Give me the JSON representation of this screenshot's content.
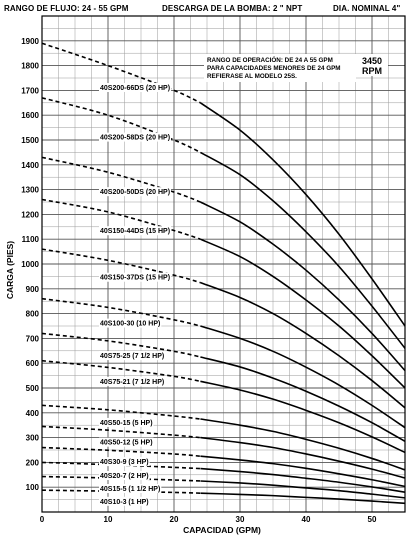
{
  "header": {
    "flow_range": "RANGO DE FLUJO: 24 - 55 GPM",
    "discharge": "DESCARGA DE LA BOMBA: 2 \" NPT",
    "diameter": "DIA. NOMINAL 4\""
  },
  "chart_data": {
    "type": "line",
    "xlabel": "CAPACIDAD (GPM)",
    "ylabel": "CARGA (PIES)",
    "xlim": [
      0,
      55
    ],
    "ylim": [
      0,
      2000
    ],
    "x_ticks": [
      "0",
      "10",
      "20",
      "30",
      "40",
      "50"
    ],
    "y_ticks": [
      "100",
      "200",
      "300",
      "400",
      "500",
      "600",
      "700",
      "800",
      "900",
      "1000",
      "1100",
      "1200",
      "1300",
      "1400",
      "1500",
      "1600",
      "1700",
      "1800",
      "1900"
    ],
    "grid": true,
    "speed_value": "3450",
    "speed_unit": "RPM",
    "annotation": [
      "RANGO DE OPERACIÓN: DE 24 A 55 GPM",
      "PARA CAPACIDADES MENORES DE 24 GPM",
      "REFIERASE AL MODELO 25S."
    ],
    "operating_range_start": 24,
    "series": [
      {
        "name": "40S200-66DS (20 HP)",
        "x": [
          0,
          10,
          20,
          24,
          30,
          35,
          40,
          45,
          50,
          55
        ],
        "y": [
          1890,
          1800,
          1700,
          1650,
          1540,
          1420,
          1280,
          1120,
          940,
          750
        ]
      },
      {
        "name": "40S200-58DS (20 HP)",
        "x": [
          0,
          10,
          20,
          24,
          30,
          35,
          40,
          45,
          50,
          55
        ],
        "y": [
          1670,
          1600,
          1500,
          1450,
          1360,
          1255,
          1130,
          990,
          830,
          660
        ]
      },
      {
        "name": "40S200-50DS (20 HP)",
        "x": [
          0,
          10,
          20,
          24,
          30,
          35,
          40,
          45,
          50,
          55
        ],
        "y": [
          1430,
          1370,
          1290,
          1250,
          1170,
          1080,
          975,
          855,
          720,
          570
        ]
      },
      {
        "name": "40S150-44DS (15 HP)",
        "x": [
          0,
          10,
          20,
          24,
          30,
          35,
          40,
          45,
          50,
          55
        ],
        "y": [
          1260,
          1210,
          1135,
          1100,
          1030,
          950,
          855,
          750,
          630,
          500
        ]
      },
      {
        "name": "40S150-37DS (15 HP)",
        "x": [
          0,
          10,
          20,
          24,
          30,
          35,
          40,
          45,
          50,
          55
        ],
        "y": [
          1060,
          1015,
          955,
          925,
          865,
          800,
          720,
          630,
          530,
          420
        ]
      },
      {
        "name": "40S100-30 (10 HP)",
        "x": [
          0,
          10,
          20,
          24,
          30,
          35,
          40,
          45,
          50,
          55
        ],
        "y": [
          860,
          825,
          775,
          750,
          700,
          648,
          584,
          512,
          430,
          340
        ]
      },
      {
        "name": "40S75-25 (7 1/2 HP)",
        "x": [
          0,
          10,
          20,
          24,
          30,
          35,
          40,
          45,
          50,
          55
        ],
        "y": [
          720,
          690,
          648,
          625,
          585,
          540,
          487,
          427,
          360,
          285
        ]
      },
      {
        "name": "40S75-21 (7 1/2 HP)",
        "x": [
          0,
          10,
          20,
          24,
          30,
          35,
          40,
          45,
          50,
          55
        ],
        "y": [
          610,
          583,
          547,
          527,
          492,
          455,
          410,
          360,
          303,
          240
        ]
      },
      {
        "name": "40S50-15 (5 HP)",
        "x": [
          0,
          10,
          20,
          24,
          30,
          35,
          40,
          45,
          50,
          55
        ],
        "y": [
          430,
          412,
          387,
          375,
          350,
          325,
          293,
          257,
          216,
          170
        ]
      },
      {
        "name": "40S50-12 (5 HP)",
        "x": [
          0,
          10,
          20,
          24,
          30,
          35,
          40,
          45,
          50,
          55
        ],
        "y": [
          345,
          330,
          310,
          300,
          280,
          260,
          234,
          205,
          173,
          137
        ]
      },
      {
        "name": "40S30-9 (3 HP)",
        "x": [
          0,
          10,
          20,
          24,
          30,
          35,
          40,
          45,
          50,
          55
        ],
        "y": [
          260,
          249,
          234,
          225,
          210,
          195,
          176,
          154,
          130,
          103
        ]
      },
      {
        "name": "40S20-7 (2 HP)",
        "x": [
          0,
          10,
          20,
          24,
          30,
          35,
          40,
          45,
          50,
          55
        ],
        "y": [
          200,
          191,
          180,
          175,
          163,
          151,
          136,
          120,
          101,
          80
        ]
      },
      {
        "name": "40S15-5 (1 1/2 HP)",
        "x": [
          0,
          10,
          20,
          24,
          30,
          35,
          40,
          45,
          50,
          55
        ],
        "y": [
          143,
          137,
          129,
          125,
          117,
          108,
          97,
          86,
          72,
          57
        ]
      },
      {
        "name": "40S10-3 (1 HP)",
        "x": [
          0,
          10,
          20,
          24,
          30,
          35,
          40,
          45,
          50,
          55
        ],
        "y": [
          88,
          84,
          79,
          76,
          71,
          66,
          59,
          52,
          44,
          35
        ]
      }
    ]
  }
}
